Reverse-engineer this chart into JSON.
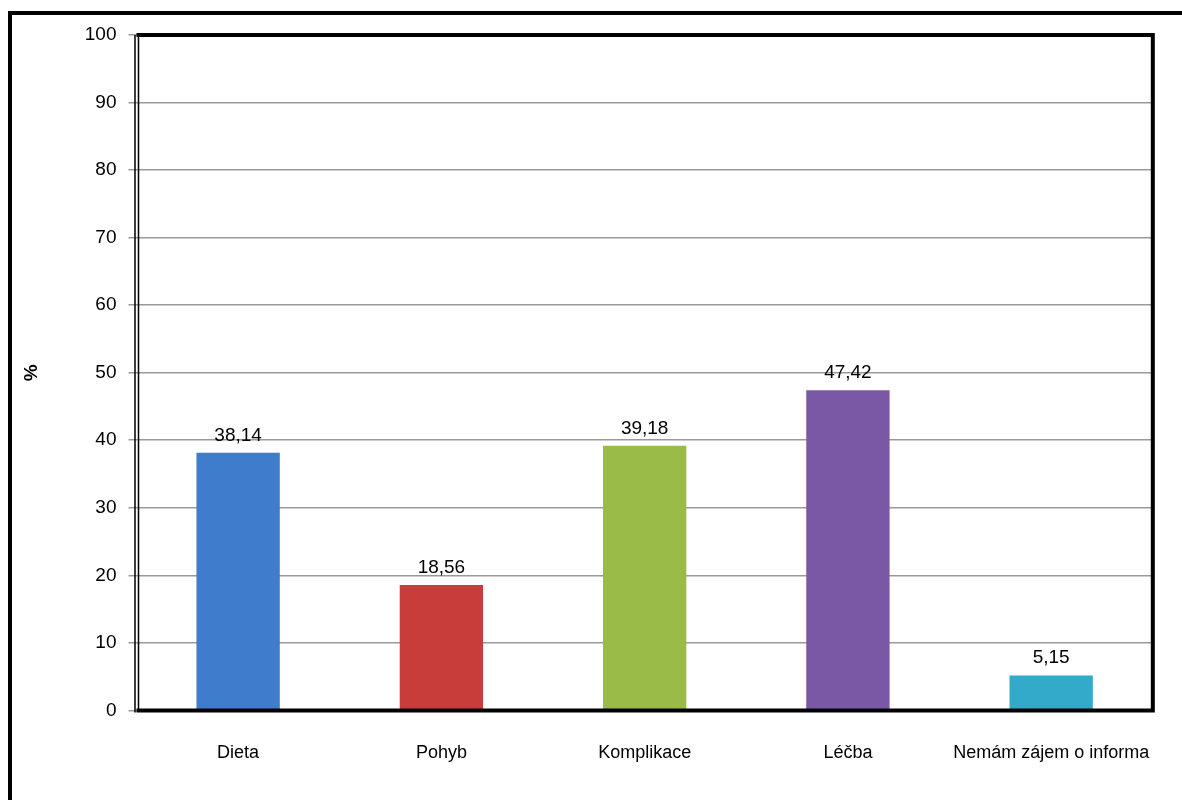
{
  "chart_data": {
    "type": "bar",
    "ylabel": "%",
    "categories": [
      "Dieta",
      "Pohyb",
      "Komplikace",
      "Léčba",
      "Nemám zájem o informa"
    ],
    "values": [
      38.14,
      18.56,
      39.18,
      47.42,
      5.15
    ],
    "colors": [
      "#3f7ccc",
      "#c83c3a",
      "#9bbb48",
      "#7a58a6",
      "#34aacb"
    ],
    "value_labels": [
      "38,14",
      "18,56",
      "39,18",
      "47,42",
      "5,15"
    ],
    "ylim": [
      0,
      100
    ],
    "yticks": [
      0,
      10,
      20,
      30,
      40,
      50,
      60,
      70,
      80,
      90,
      100
    ],
    "grid": "y"
  }
}
